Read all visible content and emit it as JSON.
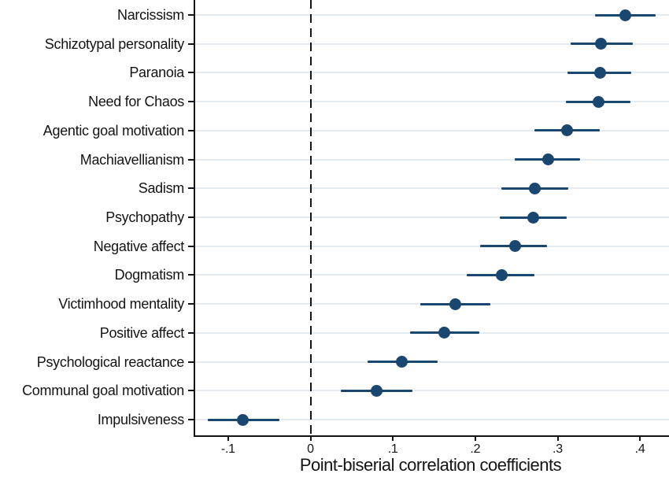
{
  "chart_data": {
    "type": "scatter",
    "subtype": "horizontal-dot-whisker",
    "title": "",
    "xlabel": "Point-biserial correlation coefficients",
    "ylabel": "",
    "categories": [
      "Narcissism",
      "Schizotypal personality",
      "Paranoia",
      "Need for Chaos",
      "Agentic goal motivation",
      "Machiavellianism",
      "Sadism",
      "Psychopathy",
      "Negative affect",
      "Dogmatism",
      "Victimhood mentality",
      "Positive affect",
      "Psychological reactance",
      "Communal goal motivation",
      "Impulsiveness"
    ],
    "series": [
      {
        "name": "Point-biserial correlation coefficient",
        "values": [
          0.382,
          0.353,
          0.352,
          0.35,
          0.311,
          0.289,
          0.272,
          0.27,
          0.248,
          0.232,
          0.176,
          0.162,
          0.111,
          0.08,
          -0.082
        ],
        "ci_low": [
          0.345,
          0.316,
          0.312,
          0.31,
          0.272,
          0.248,
          0.232,
          0.23,
          0.206,
          0.19,
          0.133,
          0.121,
          0.069,
          0.037,
          -0.125
        ],
        "ci_high": [
          0.419,
          0.391,
          0.389,
          0.388,
          0.351,
          0.327,
          0.313,
          0.311,
          0.287,
          0.272,
          0.218,
          0.205,
          0.154,
          0.124,
          -0.038
        ]
      }
    ],
    "x_ticks": [
      -0.1,
      0,
      0.1,
      0.2,
      0.3,
      0.4
    ],
    "x_tick_labels": [
      "-.1",
      "0",
      ".1",
      ".2",
      ".3",
      ".4"
    ],
    "xlim": [
      -0.14,
      0.4352
    ],
    "zero_line_x": 0,
    "grid": "horizontal-per-category",
    "legend": "none",
    "colors": {
      "marker": "#1a476f",
      "ci_bar": "#1a476f",
      "gridline": "#e4ecf2",
      "axis": "#141414",
      "text": "#141414",
      "background": "#ffffff"
    }
  }
}
